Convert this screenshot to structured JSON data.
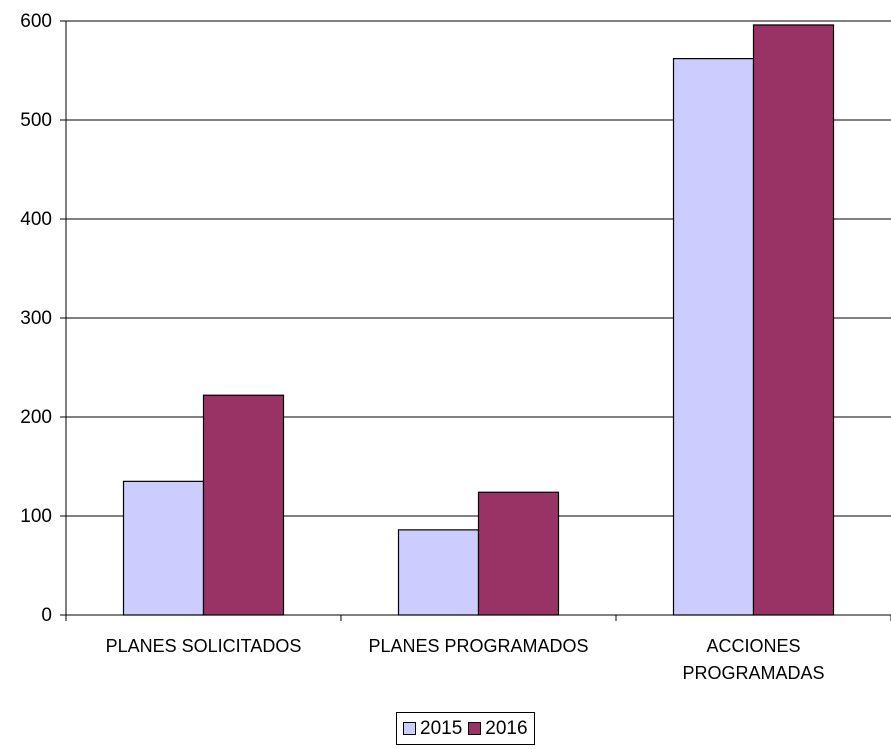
{
  "chart_data": {
    "type": "bar",
    "categories": [
      [
        "PLANES SOLICITADOS"
      ],
      [
        "PLANES PROGRAMADOS"
      ],
      [
        "ACCIONES",
        "PROGRAMADAS"
      ]
    ],
    "series": [
      {
        "name": "2015",
        "color": "#ccccff",
        "values": [
          135,
          86,
          562
        ]
      },
      {
        "name": "2016",
        "color": "#993366",
        "values": [
          222,
          124,
          596
        ]
      }
    ],
    "ylim": [
      0,
      600
    ],
    "yticks": [
      0,
      100,
      200,
      300,
      400,
      500,
      600
    ],
    "grid": true,
    "legend_position": "bottom-center"
  }
}
